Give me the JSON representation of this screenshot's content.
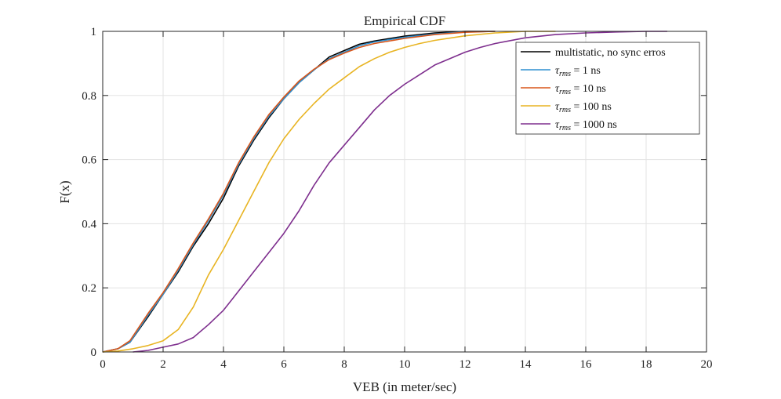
{
  "chart_data": {
    "type": "line",
    "title": "Empirical CDF",
    "xlabel": "VEB (in meter/sec)",
    "ylabel": "F(x)",
    "xlim": [
      0,
      20
    ],
    "ylim": [
      0,
      1
    ],
    "xticks": [
      0,
      2,
      4,
      6,
      8,
      10,
      12,
      14,
      16,
      18,
      20
    ],
    "yticks": [
      0,
      0.2,
      0.4,
      0.6,
      0.8,
      1
    ],
    "xtick_labels": [
      "0",
      "2",
      "4",
      "6",
      "8",
      "10",
      "12",
      "14",
      "16",
      "18",
      "20"
    ],
    "ytick_labels": [
      "0",
      "0.2",
      "0.4",
      "0.6",
      "0.8",
      "1"
    ],
    "grid": true,
    "legend_position": "top-right",
    "series": [
      {
        "name": "multistatic, no sync erros",
        "legend": {
          "main": "multistatic, no sync erros",
          "sub": "",
          "suffix": ""
        },
        "color": "#000000",
        "points": [
          [
            0,
            0
          ],
          [
            0.5,
            0.01
          ],
          [
            0.9,
            0.03
          ],
          [
            1.5,
            0.11
          ],
          [
            2,
            0.18
          ],
          [
            2.5,
            0.25
          ],
          [
            3,
            0.33
          ],
          [
            3.5,
            0.4
          ],
          [
            4,
            0.48
          ],
          [
            4.5,
            0.58
          ],
          [
            5,
            0.66
          ],
          [
            5.5,
            0.73
          ],
          [
            6,
            0.79
          ],
          [
            6.5,
            0.84
          ],
          [
            7,
            0.88
          ],
          [
            7.5,
            0.92
          ],
          [
            8,
            0.94
          ],
          [
            8.5,
            0.96
          ],
          [
            9,
            0.97
          ],
          [
            10,
            0.985
          ],
          [
            11,
            0.995
          ],
          [
            12,
            1
          ],
          [
            13,
            1
          ]
        ]
      },
      {
        "name": "τrms = 1 ns",
        "legend": {
          "main": "τ",
          "sub": "rms",
          "suffix": " = 1 ns"
        },
        "color": "#2e8fd0",
        "points": [
          [
            0,
            0
          ],
          [
            0.5,
            0.01
          ],
          [
            0.9,
            0.03
          ],
          [
            1.5,
            0.115
          ],
          [
            2,
            0.18
          ],
          [
            2.5,
            0.255
          ],
          [
            3,
            0.335
          ],
          [
            3.5,
            0.41
          ],
          [
            4,
            0.49
          ],
          [
            4.5,
            0.585
          ],
          [
            5,
            0.665
          ],
          [
            5.5,
            0.735
          ],
          [
            6,
            0.79
          ],
          [
            6.5,
            0.84
          ],
          [
            7,
            0.88
          ],
          [
            7.5,
            0.915
          ],
          [
            8,
            0.935
          ],
          [
            8.5,
            0.955
          ],
          [
            9,
            0.967
          ],
          [
            10,
            0.982
          ],
          [
            11,
            0.992
          ],
          [
            12,
            0.998
          ],
          [
            13,
            1
          ]
        ]
      },
      {
        "name": "τrms = 10 ns",
        "legend": {
          "main": "τ",
          "sub": "rms",
          "suffix": " = 10 ns"
        },
        "color": "#d9561a",
        "points": [
          [
            0,
            0
          ],
          [
            0.5,
            0.01
          ],
          [
            0.9,
            0.035
          ],
          [
            1.5,
            0.12
          ],
          [
            2,
            0.185
          ],
          [
            2.5,
            0.26
          ],
          [
            3,
            0.34
          ],
          [
            3.5,
            0.415
          ],
          [
            4,
            0.495
          ],
          [
            4.5,
            0.59
          ],
          [
            5,
            0.67
          ],
          [
            5.5,
            0.74
          ],
          [
            6,
            0.795
          ],
          [
            6.5,
            0.845
          ],
          [
            7,
            0.882
          ],
          [
            7.5,
            0.912
          ],
          [
            8,
            0.932
          ],
          [
            8.5,
            0.95
          ],
          [
            9,
            0.962
          ],
          [
            10,
            0.978
          ],
          [
            11,
            0.99
          ],
          [
            12,
            0.997
          ],
          [
            13,
            1
          ]
        ]
      },
      {
        "name": "τrms = 100 ns",
        "legend": {
          "main": "τ",
          "sub": "rms",
          "suffix": " = 100 ns"
        },
        "color": "#e8b422",
        "points": [
          [
            0,
            0
          ],
          [
            0.5,
            0.003
          ],
          [
            1,
            0.01
          ],
          [
            1.5,
            0.02
          ],
          [
            2,
            0.035
          ],
          [
            2.5,
            0.07
          ],
          [
            3,
            0.14
          ],
          [
            3.5,
            0.24
          ],
          [
            4,
            0.32
          ],
          [
            4.5,
            0.41
          ],
          [
            5,
            0.5
          ],
          [
            5.5,
            0.59
          ],
          [
            6,
            0.665
          ],
          [
            6.5,
            0.725
          ],
          [
            7,
            0.775
          ],
          [
            7.5,
            0.82
          ],
          [
            8,
            0.855
          ],
          [
            8.5,
            0.89
          ],
          [
            9,
            0.915
          ],
          [
            9.5,
            0.935
          ],
          [
            10,
            0.95
          ],
          [
            10.5,
            0.962
          ],
          [
            11,
            0.972
          ],
          [
            12,
            0.986
          ],
          [
            13,
            0.995
          ],
          [
            14,
            1
          ],
          [
            15,
            1
          ]
        ]
      },
      {
        "name": "τrms = 1000 ns",
        "legend": {
          "main": "τ",
          "sub": "rms",
          "suffix": " = 1000 ns"
        },
        "color": "#7e2f8e",
        "points": [
          [
            1,
            0
          ],
          [
            1.5,
            0.005
          ],
          [
            2,
            0.015
          ],
          [
            2.5,
            0.025
          ],
          [
            3,
            0.045
          ],
          [
            3.5,
            0.085
          ],
          [
            4,
            0.13
          ],
          [
            4.5,
            0.19
          ],
          [
            5,
            0.25
          ],
          [
            5.5,
            0.31
          ],
          [
            6,
            0.37
          ],
          [
            6.5,
            0.44
          ],
          [
            7,
            0.52
          ],
          [
            7.5,
            0.59
          ],
          [
            8,
            0.645
          ],
          [
            8.5,
            0.7
          ],
          [
            9,
            0.755
          ],
          [
            9.5,
            0.8
          ],
          [
            10,
            0.835
          ],
          [
            10.5,
            0.865
          ],
          [
            11,
            0.895
          ],
          [
            11.5,
            0.915
          ],
          [
            12,
            0.935
          ],
          [
            12.5,
            0.95
          ],
          [
            13,
            0.962
          ],
          [
            14,
            0.98
          ],
          [
            15,
            0.99
          ],
          [
            16,
            0.995
          ],
          [
            17,
            0.998
          ],
          [
            18,
            1
          ],
          [
            18.7,
            1
          ]
        ]
      }
    ]
  }
}
